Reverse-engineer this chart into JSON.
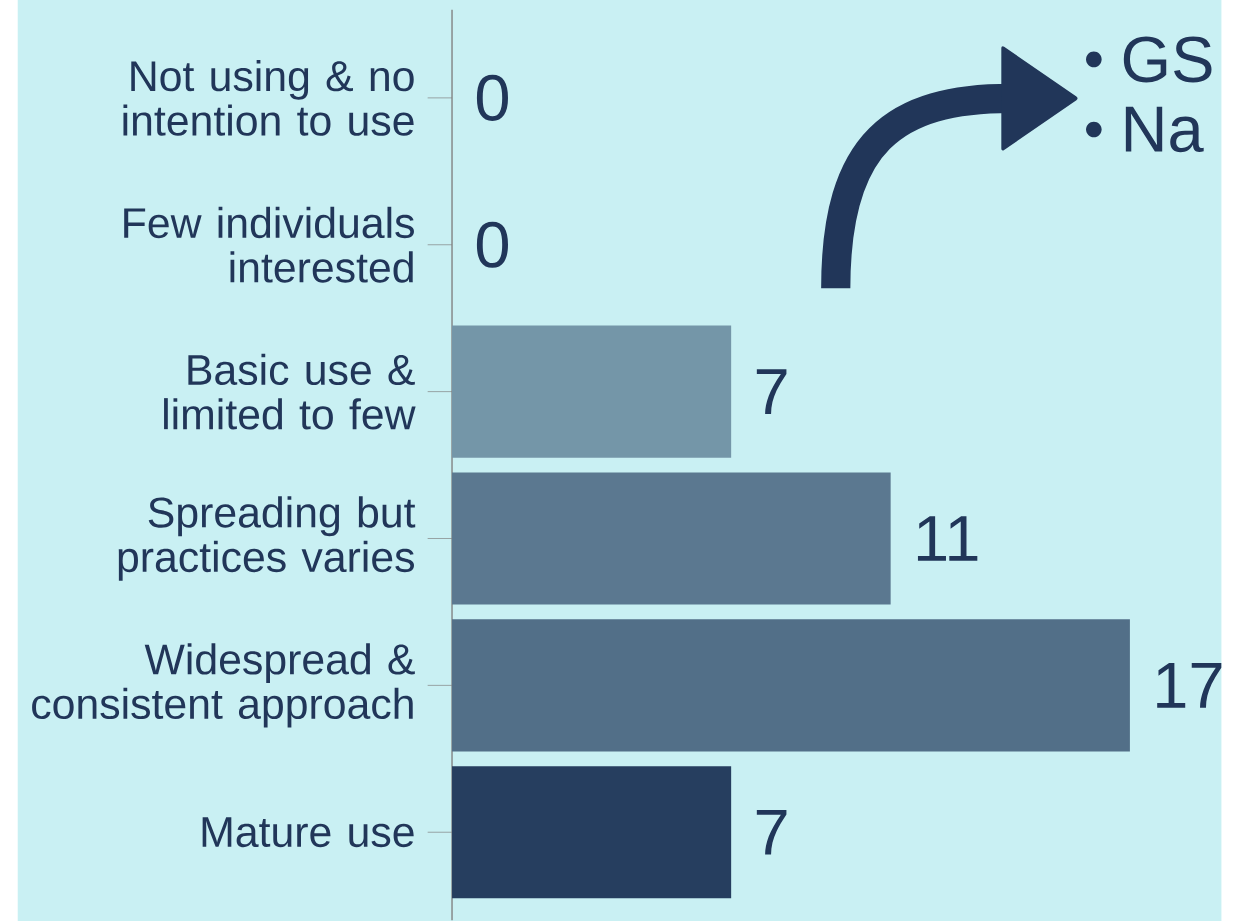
{
  "chart_data": {
    "type": "bar",
    "orientation": "horizontal",
    "categories": [
      "Not using & no intention to use",
      "Few individuals interested",
      "Basic use & limited to few",
      "Spreading but practices varies",
      "Widespread & consistent approach",
      "Mature use"
    ],
    "values": [
      0,
      0,
      7,
      11,
      17,
      7
    ],
    "colors": [
      "#7496a8",
      "#7496a8",
      "#7496a8",
      "#5b7890",
      "#526f88",
      "#263e5f"
    ],
    "data_labels": true,
    "annotations": [
      "GS",
      "Na"
    ]
  }
}
